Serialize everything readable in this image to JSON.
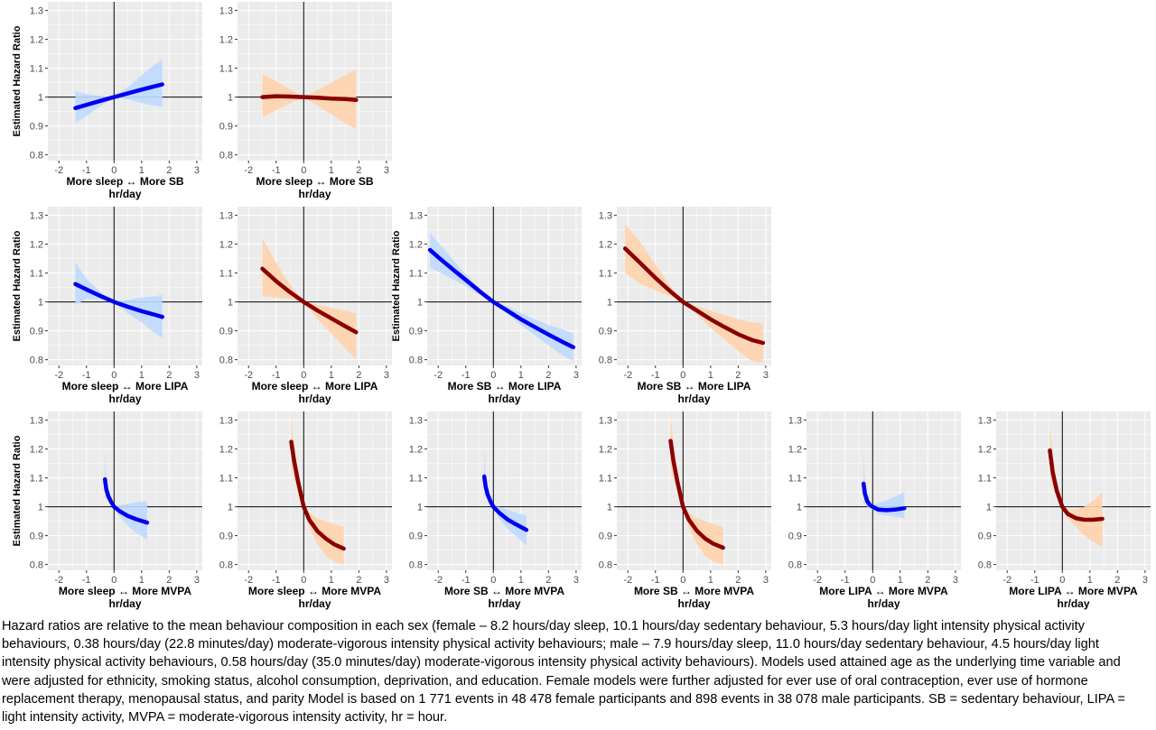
{
  "figure": {
    "y_axis_title": "Estimated Hazard Ratio",
    "x_unit": "hr/day",
    "colors": {
      "female_line": "#0000ee",
      "female_band": "#bfd9ff",
      "male_line": "#8b0000",
      "male_band": "#ffd3ad",
      "panel_bg": "#ebebeb",
      "grid": "#ffffff"
    }
  },
  "chart_data": [
    {
      "type": "line",
      "xlabel": "More sleep ↔ More SB",
      "ylabel": "Estimated Hazard Ratio",
      "group": "female",
      "xlim": [
        -2.4,
        3.2
      ],
      "ylim": [
        0.78,
        1.33
      ],
      "xticks": [
        -2,
        -1,
        0,
        1,
        2,
        3
      ],
      "yticks": [
        0.8,
        0.9,
        1,
        1.1,
        1.2,
        1.3
      ],
      "x": [
        -1.4,
        -1,
        -0.5,
        0,
        0.5,
        1,
        1.5,
        1.75
      ],
      "y": [
        0.962,
        0.973,
        0.987,
        1.0,
        1.013,
        1.026,
        1.038,
        1.044
      ],
      "lower": [
        0.91,
        0.935,
        0.968,
        1.0,
        0.992,
        0.98,
        0.97,
        0.965
      ],
      "upper": [
        1.02,
        1.01,
        1.004,
        1.0,
        1.035,
        1.075,
        1.115,
        1.13
      ]
    },
    {
      "type": "line",
      "xlabel": "More sleep ↔ More SB",
      "ylabel": "",
      "group": "male",
      "xlim": [
        -2.4,
        3.2
      ],
      "ylim": [
        0.78,
        1.33
      ],
      "xticks": [
        -2,
        -1,
        0,
        1,
        2,
        3
      ],
      "yticks": [
        0.8,
        0.9,
        1,
        1.1,
        1.2,
        1.3
      ],
      "x": [
        -1.5,
        -1,
        -0.5,
        0,
        0.5,
        1,
        1.5,
        1.9
      ],
      "y": [
        1.0,
        1.003,
        1.002,
        1.0,
        0.998,
        0.995,
        0.993,
        0.99
      ],
      "lower": [
        0.93,
        0.955,
        0.978,
        1.0,
        0.97,
        0.94,
        0.91,
        0.89
      ],
      "upper": [
        1.08,
        1.055,
        1.028,
        1.0,
        1.025,
        1.05,
        1.075,
        1.095
      ]
    },
    {
      "type": "line",
      "xlabel": "More sleep ↔ More LIPA",
      "ylabel": "Estimated Hazard Ratio",
      "group": "female",
      "xlim": [
        -2.4,
        3.2
      ],
      "ylim": [
        0.78,
        1.33
      ],
      "xticks": [
        -2,
        -1,
        0,
        1,
        2,
        3
      ],
      "yticks": [
        0.8,
        0.9,
        1,
        1.1,
        1.2,
        1.3
      ],
      "x": [
        -1.4,
        -1,
        -0.5,
        0,
        0.5,
        1,
        1.5,
        1.75
      ],
      "y": [
        1.062,
        1.043,
        1.021,
        1.0,
        0.983,
        0.968,
        0.955,
        0.948
      ],
      "lower": [
        0.99,
        1.01,
        1.008,
        1.0,
        0.96,
        0.93,
        0.89,
        0.875
      ],
      "upper": [
        1.135,
        1.08,
        1.035,
        1.0,
        1.007,
        1.015,
        1.02,
        1.025
      ]
    },
    {
      "type": "line",
      "xlabel": "More sleep ↔ More LIPA",
      "ylabel": "",
      "group": "male",
      "xlim": [
        -2.4,
        3.2
      ],
      "ylim": [
        0.78,
        1.33
      ],
      "xticks": [
        -2,
        -1,
        0,
        1,
        2,
        3
      ],
      "yticks": [
        0.8,
        0.9,
        1,
        1.1,
        1.2,
        1.3
      ],
      "x": [
        -1.5,
        -1,
        -0.5,
        0,
        0.5,
        1,
        1.5,
        1.9
      ],
      "y": [
        1.115,
        1.072,
        1.034,
        1.0,
        0.97,
        0.943,
        0.916,
        0.895
      ],
      "lower": [
        1.02,
        1.015,
        1.01,
        1.0,
        0.94,
        0.89,
        0.84,
        0.8
      ],
      "upper": [
        1.22,
        1.135,
        1.06,
        1.0,
        0.99,
        0.98,
        0.97,
        0.96
      ]
    },
    {
      "type": "line",
      "xlabel": "More SB ↔ More LIPA",
      "ylabel": "Estimated Hazard Ratio",
      "group": "female",
      "xlim": [
        -2.4,
        3.2
      ],
      "ylim": [
        0.78,
        1.33
      ],
      "xticks": [
        -2,
        -1,
        0,
        1,
        2,
        3
      ],
      "yticks": [
        0.8,
        0.9,
        1,
        1.1,
        1.2,
        1.3
      ],
      "x": [
        -2.3,
        -2,
        -1.5,
        -1,
        -0.5,
        0,
        0.5,
        1,
        1.5,
        2,
        2.5,
        2.9
      ],
      "y": [
        1.18,
        1.155,
        1.115,
        1.076,
        1.037,
        1.0,
        0.97,
        0.94,
        0.913,
        0.887,
        0.862,
        0.843
      ],
      "lower": [
        1.12,
        1.105,
        1.08,
        1.055,
        1.025,
        1.0,
        0.96,
        0.92,
        0.885,
        0.85,
        0.815,
        0.795
      ],
      "upper": [
        1.24,
        1.205,
        1.15,
        1.095,
        1.048,
        1.0,
        0.985,
        0.962,
        0.94,
        0.92,
        0.905,
        0.89
      ]
    },
    {
      "type": "line",
      "xlabel": "More SB ↔ More LIPA",
      "ylabel": "",
      "group": "male",
      "xlim": [
        -2.4,
        3.2
      ],
      "ylim": [
        0.78,
        1.33
      ],
      "xticks": [
        -2,
        -1,
        0,
        1,
        2,
        3
      ],
      "yticks": [
        0.8,
        0.9,
        1,
        1.1,
        1.2,
        1.3
      ],
      "x": [
        -2.1,
        -1.5,
        -1,
        -0.5,
        0,
        0.5,
        1,
        1.5,
        2,
        2.5,
        2.9
      ],
      "y": [
        1.185,
        1.13,
        1.083,
        1.04,
        1.0,
        0.97,
        0.94,
        0.913,
        0.888,
        0.868,
        0.858
      ],
      "lower": [
        1.1,
        1.06,
        1.04,
        1.02,
        1.0,
        0.955,
        0.91,
        0.87,
        0.83,
        0.795,
        0.79
      ],
      "upper": [
        1.27,
        1.2,
        1.13,
        1.06,
        1.0,
        0.985,
        0.97,
        0.955,
        0.94,
        0.93,
        0.925
      ]
    },
    {
      "type": "line",
      "xlabel": "More sleep ↔ More MVPA",
      "ylabel": "Estimated Hazard Ratio",
      "group": "female",
      "xlim": [
        -2.4,
        3.2
      ],
      "ylim": [
        0.78,
        1.33
      ],
      "xticks": [
        -2,
        -1,
        0,
        1,
        2,
        3
      ],
      "yticks": [
        0.8,
        0.9,
        1,
        1.1,
        1.2,
        1.3
      ],
      "x": [
        -0.33,
        -0.28,
        -0.2,
        -0.1,
        0,
        0.2,
        0.5,
        0.8,
        1.2
      ],
      "y": [
        1.095,
        1.06,
        1.035,
        1.016,
        1.0,
        0.985,
        0.968,
        0.957,
        0.945
      ],
      "lower": [
        1.03,
        1.03,
        1.02,
        1.01,
        1.0,
        0.965,
        0.935,
        0.91,
        0.885
      ],
      "upper": [
        1.19,
        1.1,
        1.055,
        1.025,
        1.0,
        1.005,
        1.01,
        1.015,
        1.02
      ]
    },
    {
      "type": "line",
      "xlabel": "More sleep ↔ More MVPA",
      "ylabel": "",
      "group": "male",
      "xlim": [
        -2.4,
        3.2
      ],
      "ylim": [
        0.78,
        1.33
      ],
      "xticks": [
        -2,
        -1,
        0,
        1,
        2,
        3
      ],
      "yticks": [
        0.8,
        0.9,
        1,
        1.1,
        1.2,
        1.3
      ],
      "x": [
        -0.45,
        -0.35,
        -0.2,
        0,
        0.2,
        0.5,
        0.8,
        1.1,
        1.45
      ],
      "y": [
        1.225,
        1.16,
        1.085,
        1.0,
        0.955,
        0.915,
        0.89,
        0.87,
        0.855
      ],
      "lower": [
        1.14,
        1.1,
        1.05,
        1.0,
        0.93,
        0.87,
        0.83,
        0.81,
        0.8
      ],
      "upper": [
        1.31,
        1.22,
        1.12,
        1.0,
        0.98,
        0.96,
        0.95,
        0.94,
        0.93
      ]
    },
    {
      "type": "line",
      "xlabel": "More SB ↔ More MVPA",
      "ylabel": "",
      "group": "female",
      "xlim": [
        -2.4,
        3.2
      ],
      "ylim": [
        0.78,
        1.33
      ],
      "xticks": [
        -2,
        -1,
        0,
        1,
        2,
        3
      ],
      "yticks": [
        0.8,
        0.9,
        1,
        1.1,
        1.2,
        1.3
      ],
      "x": [
        -0.33,
        -0.28,
        -0.2,
        -0.1,
        0,
        0.2,
        0.5,
        0.8,
        1.2
      ],
      "y": [
        1.105,
        1.07,
        1.04,
        1.018,
        1.0,
        0.98,
        0.957,
        0.94,
        0.92
      ],
      "lower": [
        1.04,
        1.04,
        1.025,
        1.01,
        1.0,
        0.96,
        0.925,
        0.9,
        0.865
      ],
      "upper": [
        1.2,
        1.11,
        1.06,
        1.028,
        1.0,
        1.0,
        0.99,
        0.98,
        0.97
      ]
    },
    {
      "type": "line",
      "xlabel": "More SB ↔ More MVPA",
      "ylabel": "",
      "group": "male",
      "xlim": [
        -2.4,
        3.2
      ],
      "ylim": [
        0.78,
        1.33
      ],
      "xticks": [
        -2,
        -1,
        0,
        1,
        2,
        3
      ],
      "yticks": [
        0.8,
        0.9,
        1,
        1.1,
        1.2,
        1.3
      ],
      "x": [
        -0.45,
        -0.35,
        -0.2,
        0,
        0.2,
        0.5,
        0.8,
        1.1,
        1.45
      ],
      "y": [
        1.228,
        1.16,
        1.085,
        1.0,
        0.957,
        0.917,
        0.89,
        0.872,
        0.858
      ],
      "lower": [
        1.14,
        1.1,
        1.05,
        1.0,
        0.93,
        0.87,
        0.83,
        0.81,
        0.8
      ],
      "upper": [
        1.31,
        1.22,
        1.12,
        1.0,
        0.98,
        0.96,
        0.95,
        0.94,
        0.93
      ]
    },
    {
      "type": "line",
      "xlabel": "More LIPA ↔ More MVPA",
      "ylabel": "",
      "group": "female",
      "xlim": [
        -2.4,
        3.2
      ],
      "ylim": [
        0.78,
        1.33
      ],
      "xticks": [
        -2,
        -1,
        0,
        1,
        2,
        3
      ],
      "yticks": [
        0.8,
        0.9,
        1,
        1.1,
        1.2,
        1.3
      ],
      "x": [
        -0.33,
        -0.28,
        -0.2,
        -0.1,
        0,
        0.2,
        0.5,
        0.8,
        1.15
      ],
      "y": [
        1.08,
        1.045,
        1.02,
        1.006,
        1.0,
        0.99,
        0.988,
        0.99,
        0.995
      ],
      "lower": [
        1.01,
        1.01,
        1.0,
        0.995,
        0.99,
        0.975,
        0.97,
        0.965,
        0.96
      ],
      "upper": [
        1.18,
        1.09,
        1.045,
        1.015,
        1.008,
        1.012,
        1.022,
        1.035,
        1.05
      ]
    },
    {
      "type": "line",
      "xlabel": "More LIPA ↔ More MVPA",
      "ylabel": "",
      "group": "male",
      "xlim": [
        -2.4,
        3.2
      ],
      "ylim": [
        0.78,
        1.33
      ],
      "xticks": [
        -2,
        -1,
        0,
        1,
        2,
        3
      ],
      "yticks": [
        0.8,
        0.9,
        1,
        1.1,
        1.2,
        1.3
      ],
      "x": [
        -0.45,
        -0.35,
        -0.2,
        0,
        0.2,
        0.5,
        0.8,
        1.1,
        1.45
      ],
      "y": [
        1.195,
        1.12,
        1.055,
        1.0,
        0.975,
        0.96,
        0.955,
        0.955,
        0.958
      ],
      "lower": [
        1.11,
        1.07,
        1.03,
        1.0,
        0.96,
        0.93,
        0.9,
        0.88,
        0.86
      ],
      "upper": [
        1.28,
        1.18,
        1.085,
        1.0,
        0.99,
        0.99,
        1.0,
        1.02,
        1.05
      ]
    }
  ],
  "caption": "Hazard ratios are relative to the mean behaviour composition in each sex (female – 8.2 hours/day sleep, 10.1 hours/day sedentary behaviour, 5.3 hours/day light intensity physical activity behaviours, 0.38 hours/day (22.8 minutes/day) moderate-vigorous intensity physical activity behaviours; male – 7.9 hours/day sleep, 11.0 hours/day sedentary behaviour, 4.5 hours/day light intensity physical activity behaviours, 0.58 hours/day (35.0 minutes/day) moderate-vigorous intensity physical activity behaviours). Models used attained age as the underlying time variable and were adjusted for ethnicity, smoking status, alcohol consumption, deprivation, and education. Female models were further adjusted for ever use of oral contraception, ever use of hormone replacement therapy, menopausal status, and parity Model is based on 1 771 events in 48 478 female participants and 898 events in 38 078 male participants. SB = sedentary behaviour, LIPA = light intensity activity, MVPA = moderate-vigorous intensity activity, hr = hour."
}
